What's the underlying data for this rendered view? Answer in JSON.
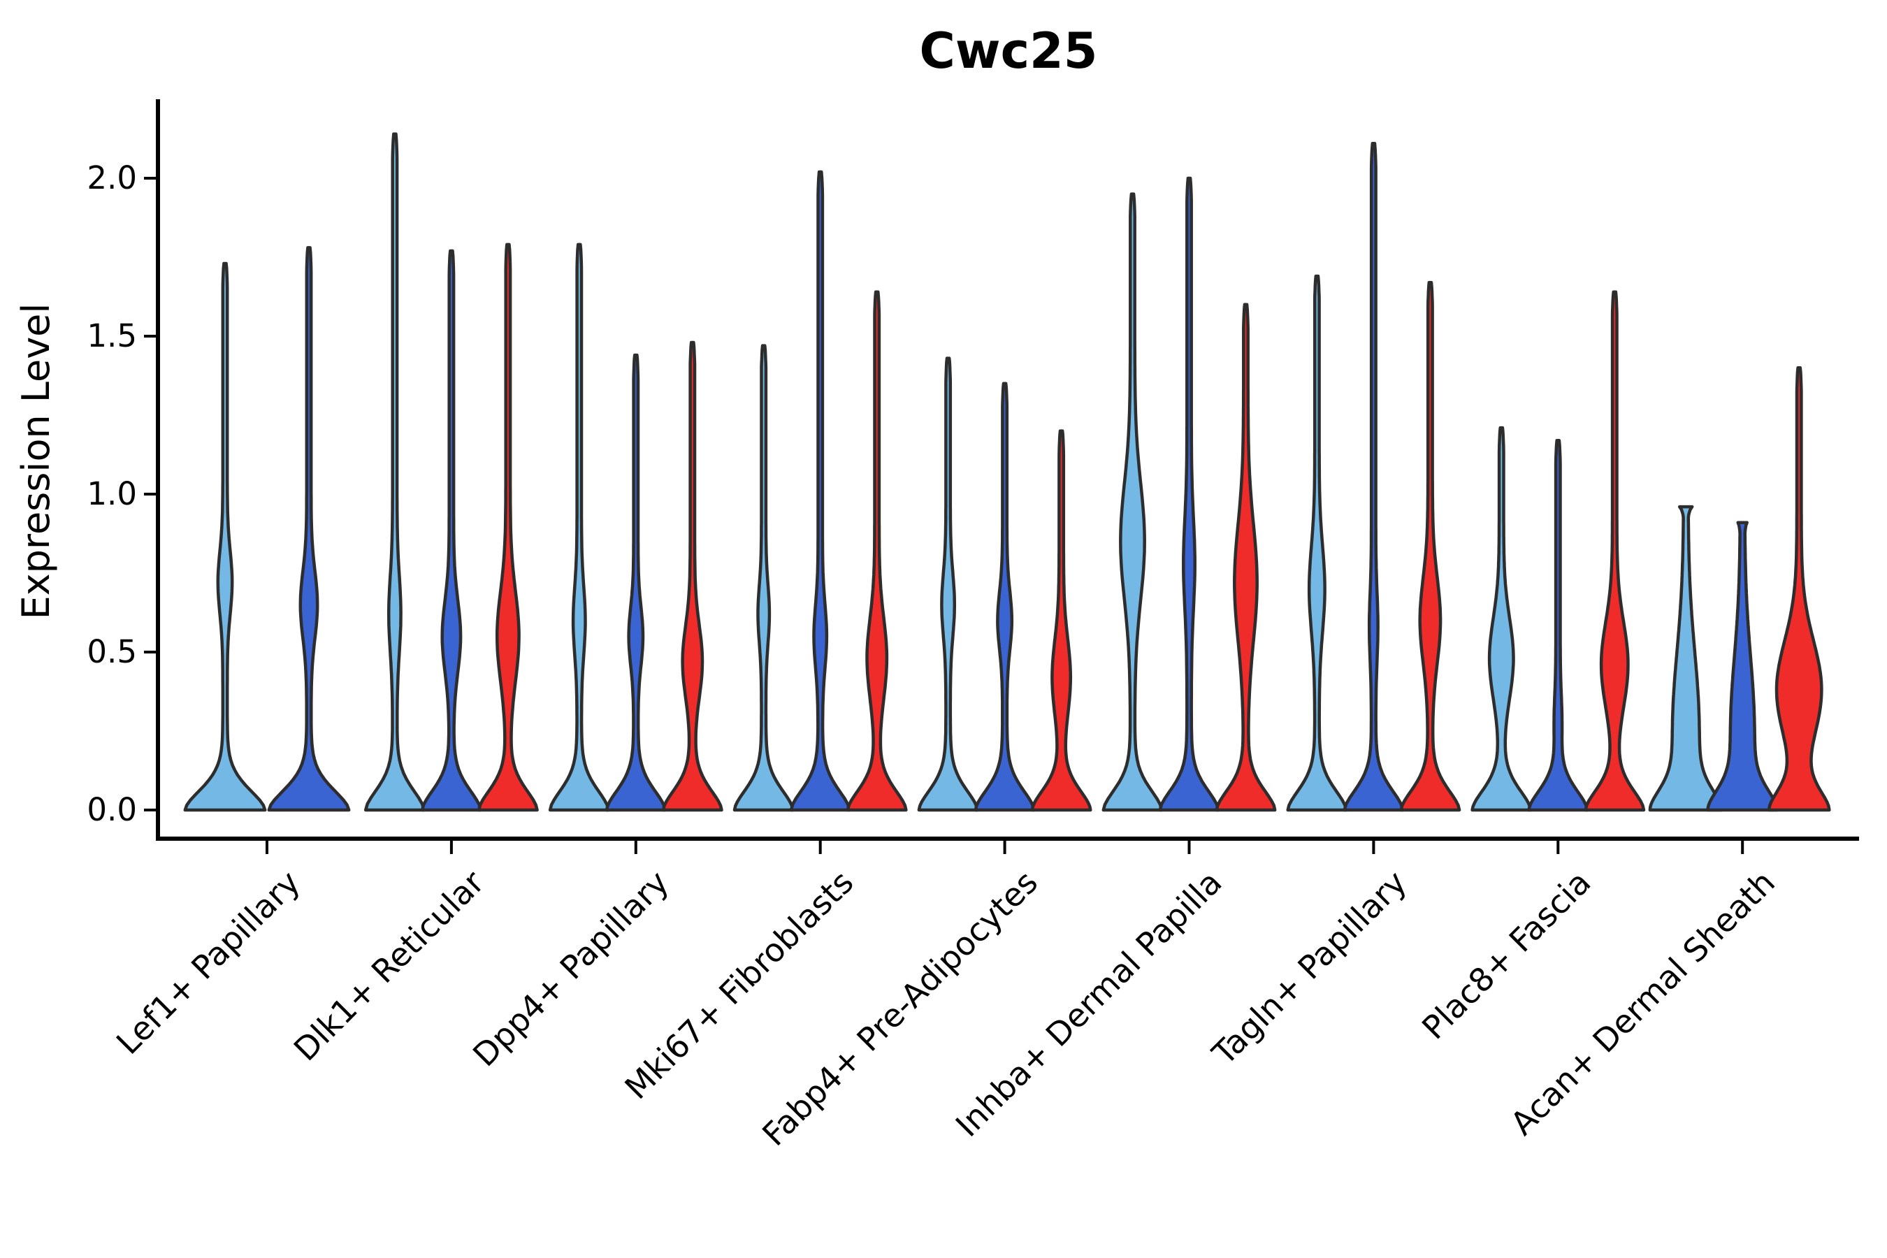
{
  "chart_data": {
    "type": "violin",
    "title": "Cwc25",
    "xlabel": "",
    "ylabel": "Expression Level",
    "ylim": [
      -0.085,
      2.254
    ],
    "grid": false,
    "legend": "none",
    "yticks": [
      {
        "value": 0.0,
        "label": "0.0"
      },
      {
        "value": 0.5,
        "label": "0.5"
      },
      {
        "value": 1.0,
        "label": "1.0"
      },
      {
        "value": 1.5,
        "label": "1.5"
      },
      {
        "value": 2.0,
        "label": "2.0"
      }
    ],
    "palette": {
      "light_blue": "#74B9E5",
      "dark_blue": "#3A64D2",
      "red": "#F02C2A",
      "outline": "#2D2D2D",
      "axis": "#000000"
    },
    "categories": [
      "Lef1+ Papillary",
      "Dlk1+ Reticular",
      "Dpp4+ Papillary",
      "Mki67+ Fibroblasts",
      "Fabp4+ Pre-Adipocytes",
      "Inhba+ Dermal Papilla",
      "Tagln+ Papillary",
      "Plac8+ Fascia",
      "Acan+ Dermal Sheath"
    ],
    "groups": [
      {
        "label": "Lef1+ Papillary",
        "violins": [
          {
            "color": "light_blue",
            "max": 1.73,
            "bc": 0.72,
            "bs": 0.14,
            "bw": 7
          },
          {
            "color": "dark_blue",
            "max": 1.78,
            "bc": 0.65,
            "bs": 0.15,
            "bw": 9
          }
        ]
      },
      {
        "label": "Dlk1+ Reticular",
        "violins": [
          {
            "color": "light_blue",
            "max": 2.14,
            "bc": 0.62,
            "bs": 0.17,
            "bw": 5.5
          },
          {
            "color": "dark_blue",
            "max": 1.77,
            "bc": 0.55,
            "bs": 0.16,
            "bw": 10
          },
          {
            "color": "red",
            "max": 1.79,
            "bc": 0.55,
            "bs": 0.2,
            "bw": 12.5
          }
        ]
      },
      {
        "label": "Dpp4+ Papillary",
        "violins": [
          {
            "color": "light_blue",
            "max": 1.79,
            "bc": 0.6,
            "bs": 0.15,
            "bw": 5.5
          },
          {
            "color": "dark_blue",
            "max": 1.44,
            "bc": 0.55,
            "bs": 0.13,
            "bw": 7
          },
          {
            "color": "red",
            "max": 1.48,
            "bc": 0.47,
            "bs": 0.16,
            "bw": 11
          }
        ]
      },
      {
        "label": "Mki67+ Fibroblasts",
        "violins": [
          {
            "color": "light_blue",
            "max": 1.47,
            "bc": 0.62,
            "bs": 0.13,
            "bw": 5
          },
          {
            "color": "dark_blue",
            "max": 2.02,
            "bc": 0.55,
            "bs": 0.14,
            "bw": 6
          },
          {
            "color": "red",
            "max": 1.64,
            "bc": 0.48,
            "bs": 0.18,
            "bw": 11
          }
        ]
      },
      {
        "label": "Fabp4+ Pre-Adipocytes",
        "violins": [
          {
            "color": "light_blue",
            "max": 1.43,
            "bc": 0.65,
            "bs": 0.14,
            "bw": 6
          },
          {
            "color": "dark_blue",
            "max": 1.35,
            "bc": 0.6,
            "bs": 0.13,
            "bw": 7
          },
          {
            "color": "red",
            "max": 1.2,
            "bc": 0.42,
            "bs": 0.17,
            "bw": 10
          }
        ]
      },
      {
        "label": "Inhba+ Dermal Papilla",
        "violins": [
          {
            "color": "light_blue",
            "max": 1.95,
            "bc": 0.85,
            "bs": 0.26,
            "bw": 14
          },
          {
            "color": "dark_blue",
            "max": 2.0,
            "bc": 0.78,
            "bs": 0.2,
            "bw": 5
          },
          {
            "color": "red",
            "max": 1.6,
            "bc": 0.72,
            "bs": 0.26,
            "bw": 13
          }
        ]
      },
      {
        "label": "Tagln+ Papillary",
        "violins": [
          {
            "color": "light_blue",
            "max": 1.69,
            "bc": 0.7,
            "bs": 0.19,
            "bw": 8
          },
          {
            "color": "dark_blue",
            "max": 2.11,
            "bc": 0.58,
            "bs": 0.15,
            "bw": 3
          },
          {
            "color": "red",
            "max": 1.67,
            "bc": 0.6,
            "bs": 0.19,
            "bw": 11.5
          }
        ]
      },
      {
        "label": "Plac8+ Fascia",
        "violins": [
          {
            "color": "light_blue",
            "max": 1.21,
            "bc": 0.48,
            "bs": 0.18,
            "bw": 14
          },
          {
            "color": "dark_blue",
            "max": 1.17,
            "bc": 0.28,
            "bs": 0.12,
            "bw": 2.5
          },
          {
            "color": "red",
            "max": 1.64,
            "bc": 0.46,
            "bs": 0.19,
            "bw": 16
          }
        ]
      },
      {
        "label": "Acan+ Dermal Sheath",
        "violins": [
          {
            "color": "light_blue",
            "max": 0.96,
            "bc": 0.25,
            "bs": 0.35,
            "bw": 16,
            "top": 9,
            "taper": 0.03
          },
          {
            "color": "dark_blue",
            "max": 0.91,
            "bc": 0.25,
            "bs": 0.33,
            "bw": 14,
            "top": 6.5,
            "taper": 0.03
          },
          {
            "color": "red",
            "max": 1.4,
            "bc": 0.38,
            "bs": 0.22,
            "bw": 29
          }
        ]
      }
    ]
  }
}
